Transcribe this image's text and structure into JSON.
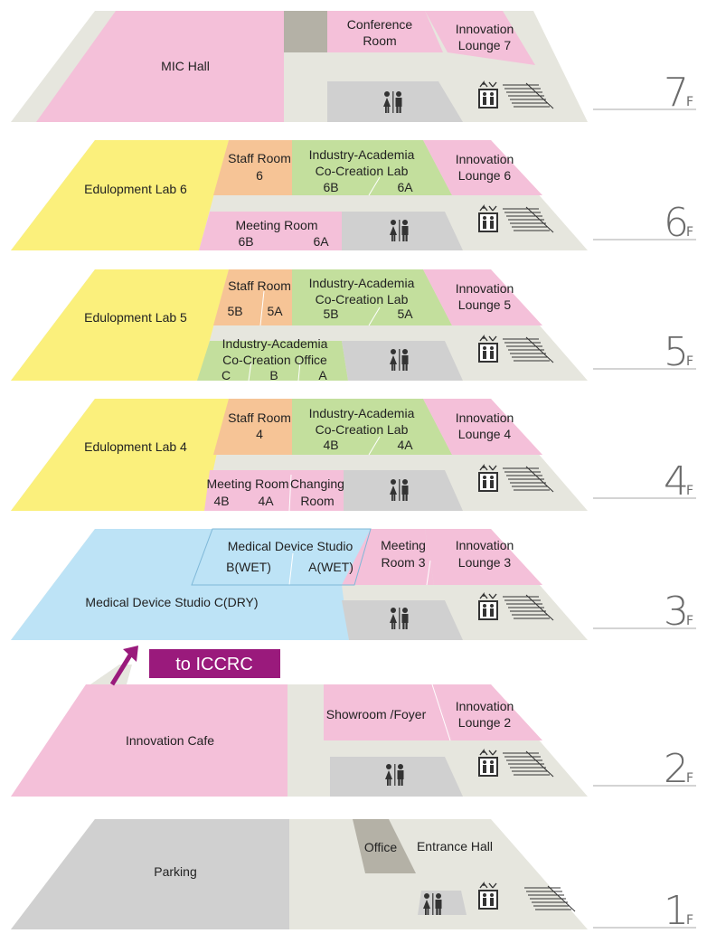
{
  "colors": {
    "floor": "#e6e6de",
    "pink": "#f4c0d9",
    "yellow": "#fbf07c",
    "green": "#c3df9d",
    "orange": "#f6c496",
    "blue": "#bde3f6",
    "gray": "#d0d0d0",
    "darkgray": "#b4b1a6",
    "accent": "#9a1a7c",
    "line": "#aaaaaa",
    "text": "#222222",
    "floor_number": "#6b6b6b"
  },
  "link": {
    "label": "to ICCRC"
  },
  "icons": {
    "elevator": "elevator-icon",
    "restroom": "restroom-icon",
    "stairs": "stairs-icon",
    "arrow": "up-right-arrow-icon"
  },
  "floors": [
    {
      "id": "7",
      "number": "7",
      "suffix": "F",
      "rooms": [
        {
          "key": "mic-hall",
          "lines": [
            "MIC Hall"
          ]
        },
        {
          "key": "conference-room",
          "lines": [
            "Conference",
            "Room"
          ]
        },
        {
          "key": "innovation-lounge-7",
          "lines": [
            "Innovation",
            "Lounge 7"
          ]
        }
      ]
    },
    {
      "id": "6",
      "number": "6",
      "suffix": "F",
      "rooms": [
        {
          "key": "edulopment-lab-6",
          "lines": [
            "Edulopment Lab 6"
          ]
        },
        {
          "key": "staff-room-6",
          "lines": [
            "Staff Room",
            "6"
          ]
        },
        {
          "key": "industry-academia-lab-6",
          "lines": [
            "Industry-Academia",
            "Co-Creation Lab"
          ],
          "subs": [
            "6B",
            "6A"
          ]
        },
        {
          "key": "innovation-lounge-6",
          "lines": [
            "Innovation",
            "Lounge 6"
          ]
        },
        {
          "key": "meeting-room-6",
          "lines": [
            "Meeting Room"
          ],
          "subs": [
            "6B",
            "6A"
          ]
        }
      ]
    },
    {
      "id": "5",
      "number": "5",
      "suffix": "F",
      "rooms": [
        {
          "key": "edulopment-lab-5",
          "lines": [
            "Edulopment Lab 5"
          ]
        },
        {
          "key": "staff-room-5",
          "lines": [
            "Staff Room"
          ],
          "subs": [
            "5B",
            "5A"
          ]
        },
        {
          "key": "industry-academia-lab-5",
          "lines": [
            "Industry-Academia",
            "Co-Creation Lab"
          ],
          "subs": [
            "5B",
            "5A"
          ]
        },
        {
          "key": "innovation-lounge-5",
          "lines": [
            "Innovation",
            "Lounge 5"
          ]
        },
        {
          "key": "industry-academia-office",
          "lines": [
            "Industry-Academia",
            "Co-Creation Office"
          ],
          "subs": [
            "C",
            "B",
            "A"
          ]
        }
      ]
    },
    {
      "id": "4",
      "number": "4",
      "suffix": "F",
      "rooms": [
        {
          "key": "edulopment-lab-4",
          "lines": [
            "Edulopment Lab 4"
          ]
        },
        {
          "key": "staff-room-4",
          "lines": [
            "Staff Room",
            "4"
          ]
        },
        {
          "key": "industry-academia-lab-4",
          "lines": [
            "Industry-Academia",
            "Co-Creation Lab"
          ],
          "subs": [
            "4B",
            "4A"
          ]
        },
        {
          "key": "innovation-lounge-4",
          "lines": [
            "Innovation",
            "Lounge 4"
          ]
        },
        {
          "key": "meeting-room-4",
          "lines": [
            "Meeting Room"
          ],
          "subs": [
            "4B",
            "4A"
          ]
        },
        {
          "key": "changing-room",
          "lines": [
            "Changing",
            "Room"
          ]
        }
      ]
    },
    {
      "id": "3",
      "number": "3",
      "suffix": "F",
      "rooms": [
        {
          "key": "medical-device-studio-ab",
          "lines": [
            "Medical Device Studio"
          ],
          "subs": [
            "B(WET)",
            "A(WET)"
          ]
        },
        {
          "key": "meeting-room-3",
          "lines": [
            "Meeting",
            "Room 3"
          ]
        },
        {
          "key": "innovation-lounge-3",
          "lines": [
            "Innovation",
            "Lounge 3"
          ]
        },
        {
          "key": "medical-device-studio-c",
          "lines": [
            "Medical Device Studio C(DRY)"
          ]
        }
      ]
    },
    {
      "id": "2",
      "number": "2",
      "suffix": "F",
      "rooms": [
        {
          "key": "innovation-cafe",
          "lines": [
            "Innovation Cafe"
          ]
        },
        {
          "key": "showroom-foyer",
          "lines": [
            "Showroom /Foyer"
          ]
        },
        {
          "key": "innovation-lounge-2",
          "lines": [
            "Innovation",
            "Lounge 2"
          ]
        }
      ]
    },
    {
      "id": "1",
      "number": "1",
      "suffix": "F",
      "rooms": [
        {
          "key": "parking",
          "lines": [
            "Parking"
          ]
        },
        {
          "key": "office",
          "lines": [
            "Office"
          ]
        },
        {
          "key": "entrance-hall",
          "lines": [
            "Entrance Hall"
          ]
        }
      ]
    }
  ]
}
